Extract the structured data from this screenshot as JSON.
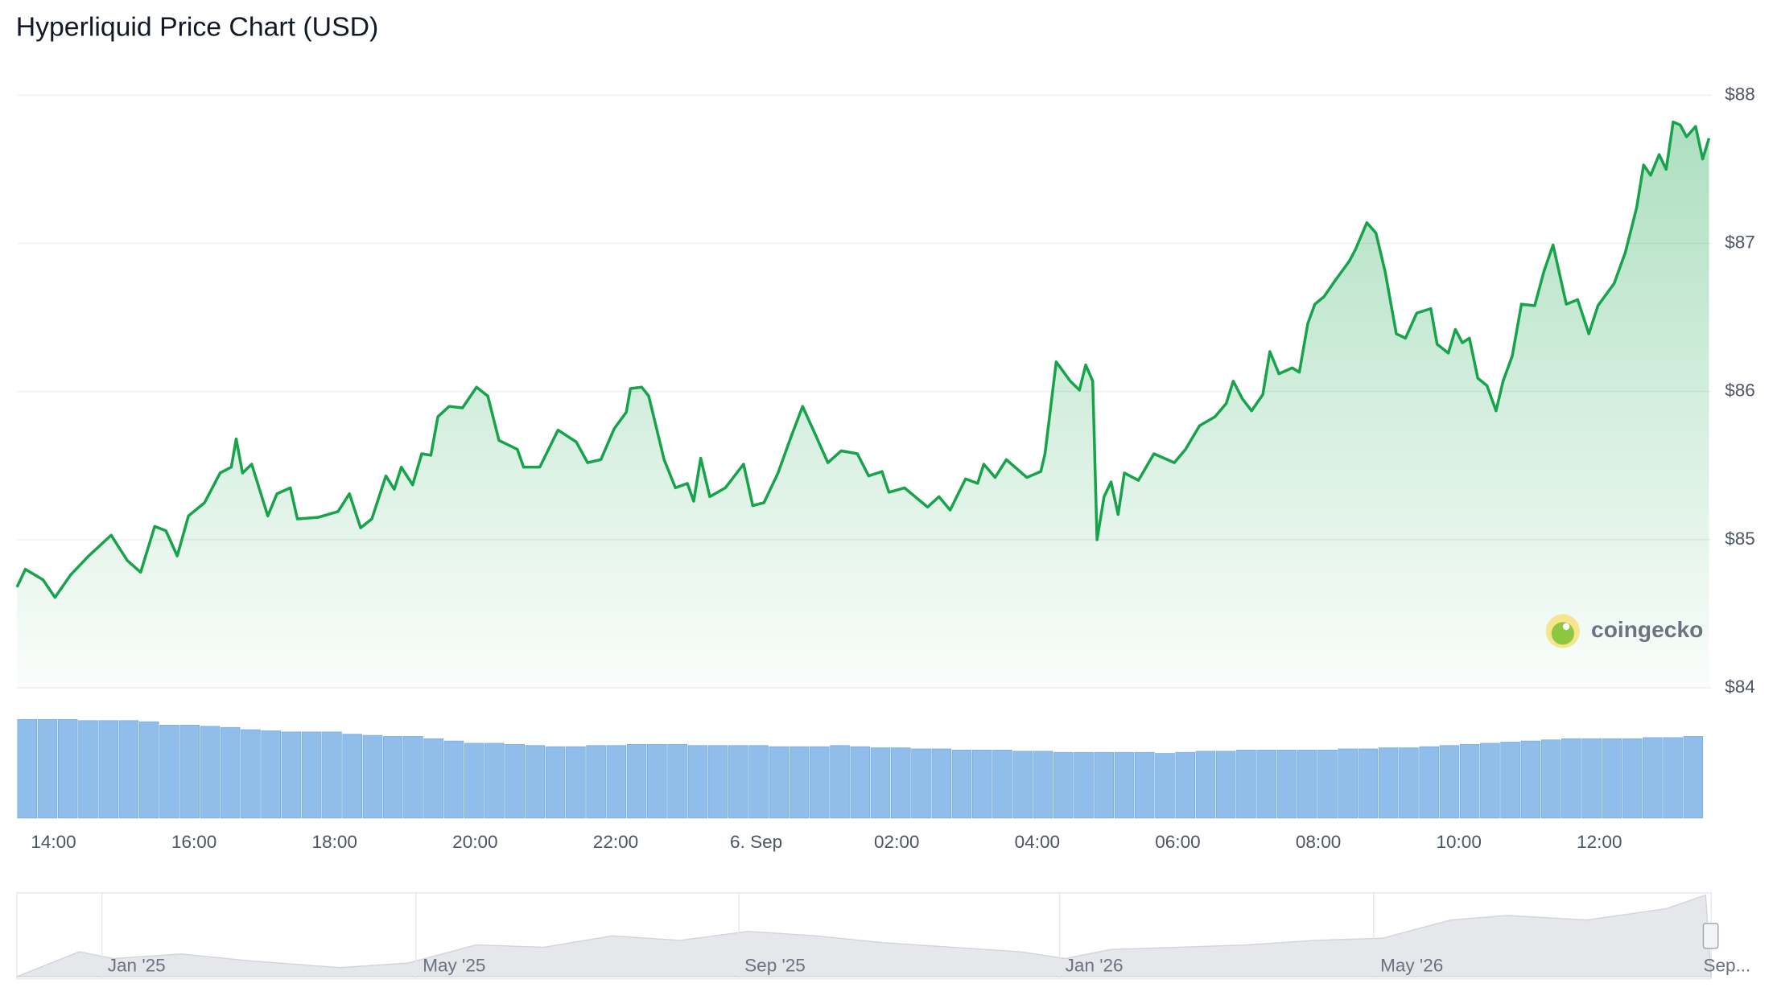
{
  "chart_data": {
    "type": "line",
    "title": "Hyperliquid Price Chart (USD)",
    "color": "#16a34a",
    "x": [
      13.48,
      13.6,
      13.85,
      14.02,
      14.24,
      14.5,
      14.82,
      15.05,
      15.24,
      15.44,
      15.6,
      15.76,
      15.92,
      16.15,
      16.37,
      16.53,
      16.6,
      16.69,
      16.82,
      17.05,
      17.18,
      17.37,
      17.47,
      17.76,
      18.05,
      18.21,
      18.37,
      18.53,
      18.73,
      18.85,
      18.95,
      19.11,
      19.24,
      19.37,
      19.47,
      19.63,
      19.82,
      20.02,
      20.18,
      20.34,
      20.6,
      20.69,
      20.92,
      21.18,
      21.44,
      21.6,
      21.79,
      21.98,
      22.15,
      22.21,
      22.37,
      22.47,
      22.69,
      22.85,
      23.02,
      23.11,
      23.21,
      23.34,
      23.56,
      23.82,
      23.95,
      24.11,
      24.31,
      24.5,
      24.66,
      24.85,
      25.02,
      25.21,
      25.44,
      25.6,
      25.79,
      25.89,
      26.11,
      26.44,
      26.6,
      26.76,
      26.98,
      27.15,
      27.24,
      27.4,
      27.56,
      27.85,
      28.05,
      28.11,
      28.27,
      28.47,
      28.6,
      28.69,
      28.79,
      28.85,
      28.95,
      29.05,
      29.15,
      29.24,
      29.44,
      29.66,
      29.95,
      30.11,
      30.31,
      30.53,
      30.69,
      30.79,
      30.92,
      31.05,
      31.21,
      31.31,
      31.44,
      31.63,
      31.73,
      31.85,
      31.95,
      32.08,
      32.24,
      32.44,
      32.53,
      32.69,
      32.82,
      32.95,
      33.11,
      33.24,
      33.4,
      33.6,
      33.69,
      33.85,
      33.95,
      34.05,
      34.15,
      34.27,
      34.4,
      34.53,
      34.63,
      34.76,
      34.89,
      35.08,
      35.21,
      35.34,
      35.53,
      35.69,
      35.85,
      35.98,
      36.21,
      36.37,
      36.53,
      36.63,
      36.73,
      36.85,
      36.95,
      37.05,
      37.15,
      37.24,
      37.37,
      37.47,
      37.56
    ],
    "values": [
      84.68,
      84.8,
      84.73,
      84.61,
      84.76,
      84.89,
      85.03,
      84.86,
      84.78,
      85.09,
      85.06,
      84.89,
      85.16,
      85.25,
      85.45,
      85.49,
      85.68,
      85.45,
      85.51,
      85.16,
      85.31,
      85.35,
      85.14,
      85.15,
      85.19,
      85.31,
      85.08,
      85.14,
      85.43,
      85.34,
      85.49,
      85.37,
      85.58,
      85.57,
      85.83,
      85.9,
      85.89,
      86.03,
      85.97,
      85.67,
      85.61,
      85.49,
      85.49,
      85.74,
      85.66,
      85.52,
      85.54,
      85.75,
      85.86,
      86.02,
      86.03,
      85.97,
      85.54,
      85.35,
      85.38,
      85.26,
      85.55,
      85.29,
      85.35,
      85.51,
      85.23,
      85.25,
      85.45,
      85.7,
      85.9,
      85.7,
      85.52,
      85.6,
      85.58,
      85.43,
      85.46,
      85.32,
      85.35,
      85.22,
      85.29,
      85.2,
      85.41,
      85.38,
      85.51,
      85.42,
      85.54,
      85.42,
      85.46,
      85.58,
      86.2,
      86.07,
      86.01,
      86.18,
      86.07,
      85.0,
      85.29,
      85.39,
      85.17,
      85.45,
      85.4,
      85.58,
      85.52,
      85.61,
      85.77,
      85.83,
      85.92,
      86.07,
      85.95,
      85.87,
      85.98,
      86.27,
      86.12,
      86.16,
      86.13,
      86.46,
      86.59,
      86.64,
      86.75,
      86.88,
      86.96,
      87.14,
      87.07,
      86.81,
      86.39,
      86.36,
      86.53,
      86.56,
      86.32,
      86.26,
      86.42,
      86.33,
      86.36,
      86.09,
      86.04,
      85.87,
      86.07,
      86.24,
      86.59,
      86.58,
      86.81,
      86.99,
      86.59,
      86.62,
      86.39,
      86.58,
      86.73,
      86.94,
      87.24,
      87.53,
      87.46,
      87.6,
      87.5,
      87.82,
      87.8,
      87.72,
      87.79,
      87.57,
      87.71
    ],
    "xlim": [
      13.48,
      37.56
    ],
    "xticks": [
      {
        "value": 14,
        "label": "14:00"
      },
      {
        "value": 16,
        "label": "16:00"
      },
      {
        "value": 18,
        "label": "18:00"
      },
      {
        "value": 20,
        "label": "20:00"
      },
      {
        "value": 22,
        "label": "22:00"
      },
      {
        "value": 24,
        "label": "6. Sep"
      },
      {
        "value": 26,
        "label": "02:00"
      },
      {
        "value": 28,
        "label": "04:00"
      },
      {
        "value": 30,
        "label": "06:00"
      },
      {
        "value": 32,
        "label": "08:00"
      },
      {
        "value": 34,
        "label": "10:00"
      },
      {
        "value": 36,
        "label": "12:00"
      }
    ],
    "ylim": [
      84,
      88
    ],
    "yticks": [
      {
        "value": 84,
        "label": "$84"
      },
      {
        "value": 85,
        "label": "$85"
      },
      {
        "value": 86,
        "label": "$86"
      },
      {
        "value": 87,
        "label": "$87"
      },
      {
        "value": 88,
        "label": "$88"
      }
    ],
    "grid": true,
    "volume": {
      "color": "#90bdea",
      "values": [
        87,
        87,
        87,
        86,
        86,
        86,
        85,
        82,
        82,
        81,
        80,
        78,
        77,
        76,
        76,
        76,
        74,
        73,
        72,
        72,
        70,
        68,
        66,
        66,
        65,
        64,
        63,
        63,
        64,
        64,
        65,
        65,
        65,
        64,
        64,
        64,
        64,
        63,
        63,
        63,
        64,
        63,
        62,
        62,
        61,
        61,
        60,
        60,
        60,
        59,
        59,
        58,
        58,
        58,
        58,
        58,
        57,
        58,
        59,
        59,
        60,
        60,
        60,
        60,
        60,
        61,
        61,
        62,
        62,
        63,
        64,
        65,
        66,
        67,
        68,
        69,
        70,
        70,
        70,
        70,
        71,
        71,
        72
      ]
    },
    "navigator_labels": [
      "Jan '25",
      "May '25",
      "Sep '25",
      "Jan '26",
      "May '26",
      "Sep..."
    ],
    "watermark": "coingecko"
  }
}
